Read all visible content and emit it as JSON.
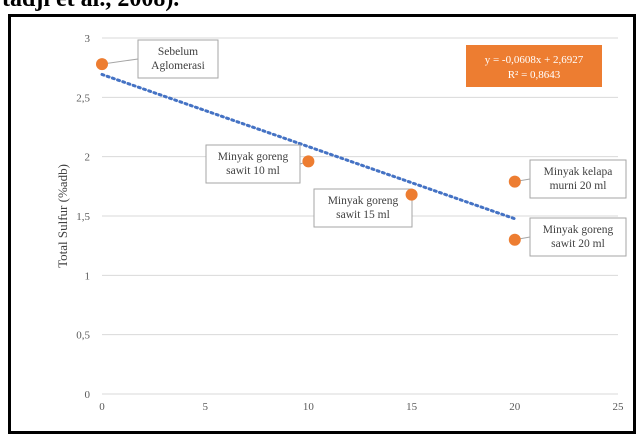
{
  "header_fragment": "tadji et al., 2008).",
  "chart_data": {
    "type": "scatter",
    "title": "",
    "xlabel": "",
    "ylabel": "Total Sulfur (%adb)",
    "xlim": [
      0,
      25
    ],
    "ylim": [
      0,
      3
    ],
    "x_ticks": [
      "0",
      "5",
      "10",
      "15",
      "20",
      "25"
    ],
    "y_ticks": [
      "0",
      "0,5",
      "1",
      "1,5",
      "2",
      "2,5",
      "3"
    ],
    "grid": "horizontal",
    "points": [
      {
        "x": 0,
        "y": 2.78,
        "label": [
          "Sebelum",
          "Aglomerasi"
        ]
      },
      {
        "x": 10,
        "y": 1.96,
        "label": [
          "Minyak goreng",
          "sawit 10 ml"
        ]
      },
      {
        "x": 15,
        "y": 1.68,
        "label": [
          "Minyak goreng",
          "sawit 15 ml"
        ]
      },
      {
        "x": 20,
        "y": 1.79,
        "label": [
          "Minyak kelapa",
          "murni 20 ml"
        ]
      },
      {
        "x": 20,
        "y": 1.3,
        "label": [
          "Minyak goreng",
          "sawit 20 ml"
        ]
      }
    ],
    "trendline": {
      "slope": -0.0608,
      "intercept": 2.6927,
      "x_range": [
        0,
        20
      ],
      "equation": "y = -0,0608x + 2,6927",
      "r_squared": "R² = 0,8643"
    },
    "colors": {
      "marker": "#ED7D31",
      "trendline": "#4472C4",
      "equation_box": "#ED7D31",
      "grid": "#D9D9D9"
    }
  }
}
